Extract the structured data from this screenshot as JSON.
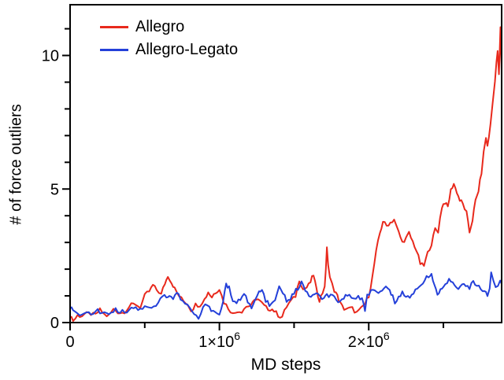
{
  "figure": {
    "background": "#ffffff",
    "axis_color": "#000000"
  },
  "chart_data": {
    "type": "line",
    "title": "",
    "xlabel": "MD steps",
    "ylabel": "# of force outliers",
    "xlim": [
      0,
      2890000
    ],
    "ylim": [
      0,
      11.9
    ],
    "grid": false,
    "legend_position": "top-left",
    "x_major_ticks": [
      {
        "value": 0,
        "base": "0",
        "exp": ""
      },
      {
        "value": 1000000,
        "base": "1×10",
        "exp": "6"
      },
      {
        "value": 2000000,
        "base": "2×10",
        "exp": "6"
      }
    ],
    "x_minor_ticks": [
      500000,
      1500000,
      2500000
    ],
    "y_major_ticks": [
      {
        "value": 0,
        "label": "0"
      },
      {
        "value": 5,
        "label": "5"
      },
      {
        "value": 10,
        "label": "10"
      }
    ],
    "y_minor_ticks": [
      1,
      2,
      3,
      4,
      6,
      7,
      8,
      9,
      11
    ],
    "series": [
      {
        "name": "Allegro",
        "color": "#e8291c",
        "points": [
          [
            0,
            0.25
          ],
          [
            20000,
            0.1
          ],
          [
            50000,
            0.3
          ],
          [
            80000,
            0.22
          ],
          [
            110000,
            0.3
          ],
          [
            140000,
            0.38
          ],
          [
            170000,
            0.28
          ],
          [
            200000,
            0.42
          ],
          [
            230000,
            0.32
          ],
          [
            260000,
            0.3
          ],
          [
            290000,
            0.45
          ],
          [
            320000,
            0.38
          ],
          [
            350000,
            0.42
          ],
          [
            380000,
            0.5
          ],
          [
            410000,
            0.6
          ],
          [
            440000,
            0.72
          ],
          [
            470000,
            0.62
          ],
          [
            500000,
            0.95
          ],
          [
            530000,
            1.15
          ],
          [
            555000,
            1.45
          ],
          [
            580000,
            1.22
          ],
          [
            610000,
            1.0
          ],
          [
            635000,
            1.5
          ],
          [
            655000,
            1.8
          ],
          [
            680000,
            1.45
          ],
          [
            700000,
            1.25
          ],
          [
            730000,
            1.05
          ],
          [
            760000,
            0.8
          ],
          [
            790000,
            0.62
          ],
          [
            810000,
            0.5
          ],
          [
            840000,
            0.7
          ],
          [
            870000,
            0.62
          ],
          [
            900000,
            0.85
          ],
          [
            925000,
            1.2
          ],
          [
            950000,
            0.95
          ],
          [
            975000,
            1.1
          ],
          [
            1000000,
            1.3
          ],
          [
            1030000,
            0.8
          ],
          [
            1060000,
            0.5
          ],
          [
            1090000,
            0.3
          ],
          [
            1120000,
            0.5
          ],
          [
            1150000,
            0.42
          ],
          [
            1180000,
            0.55
          ],
          [
            1210000,
            0.68
          ],
          [
            1245000,
            0.9
          ],
          [
            1270000,
            0.75
          ],
          [
            1300000,
            0.65
          ],
          [
            1340000,
            0.5
          ],
          [
            1380000,
            0.35
          ],
          [
            1420000,
            0.25
          ],
          [
            1450000,
            0.55
          ],
          [
            1480000,
            0.8
          ],
          [
            1510000,
            1.05
          ],
          [
            1535000,
            1.6
          ],
          [
            1560000,
            1.2
          ],
          [
            1585000,
            1.35
          ],
          [
            1610000,
            1.55
          ],
          [
            1630000,
            1.75
          ],
          [
            1650000,
            1.2
          ],
          [
            1670000,
            0.9
          ],
          [
            1690000,
            1.1
          ],
          [
            1705000,
            1.35
          ],
          [
            1713000,
            1.9
          ],
          [
            1720000,
            2.85
          ],
          [
            1728000,
            2.2
          ],
          [
            1740000,
            1.7
          ],
          [
            1755000,
            1.45
          ],
          [
            1770000,
            1.2
          ],
          [
            1790000,
            0.95
          ],
          [
            1810000,
            0.75
          ],
          [
            1835000,
            0.55
          ],
          [
            1860000,
            0.45
          ],
          [
            1890000,
            0.52
          ],
          [
            1920000,
            0.42
          ],
          [
            1950000,
            0.5
          ],
          [
            1975000,
            0.65
          ],
          [
            2000000,
            1.05
          ],
          [
            2025000,
            1.75
          ],
          [
            2050000,
            2.6
          ],
          [
            2075000,
            3.35
          ],
          [
            2095000,
            3.85
          ],
          [
            2120000,
            3.6
          ],
          [
            2145000,
            3.7
          ],
          [
            2170000,
            3.9
          ],
          [
            2200000,
            3.4
          ],
          [
            2225000,
            2.95
          ],
          [
            2250000,
            3.15
          ],
          [
            2270000,
            3.4
          ],
          [
            2295000,
            3.0
          ],
          [
            2320000,
            2.65
          ],
          [
            2345000,
            2.25
          ],
          [
            2370000,
            2.15
          ],
          [
            2395000,
            2.55
          ],
          [
            2420000,
            2.95
          ],
          [
            2445000,
            3.55
          ],
          [
            2465000,
            3.4
          ],
          [
            2490000,
            4.3
          ],
          [
            2510000,
            4.55
          ],
          [
            2530000,
            4.35
          ],
          [
            2550000,
            4.9
          ],
          [
            2570000,
            5.2
          ],
          [
            2590000,
            4.95
          ],
          [
            2610000,
            4.55
          ],
          [
            2630000,
            4.4
          ],
          [
            2655000,
            4.15
          ],
          [
            2675000,
            3.4
          ],
          [
            2695000,
            3.8
          ],
          [
            2715000,
            4.55
          ],
          [
            2735000,
            5.0
          ],
          [
            2755000,
            5.6
          ],
          [
            2770000,
            6.3
          ],
          [
            2785000,
            6.9
          ],
          [
            2795000,
            6.6
          ],
          [
            2805000,
            7.0
          ],
          [
            2815000,
            7.5
          ],
          [
            2830000,
            8.2
          ],
          [
            2845000,
            9.0
          ],
          [
            2855000,
            9.7
          ],
          [
            2863000,
            10.2
          ],
          [
            2872000,
            9.3
          ],
          [
            2882000,
            11.05
          ],
          [
            2890000,
            9.5
          ]
        ]
      },
      {
        "name": "Allegro-Legato",
        "color": "#2440d9",
        "points": [
          [
            0,
            0.55
          ],
          [
            20000,
            0.45
          ],
          [
            50000,
            0.32
          ],
          [
            80000,
            0.28
          ],
          [
            110000,
            0.4
          ],
          [
            140000,
            0.33
          ],
          [
            170000,
            0.45
          ],
          [
            200000,
            0.35
          ],
          [
            230000,
            0.42
          ],
          [
            260000,
            0.36
          ],
          [
            290000,
            0.44
          ],
          [
            320000,
            0.4
          ],
          [
            350000,
            0.48
          ],
          [
            380000,
            0.44
          ],
          [
            410000,
            0.52
          ],
          [
            440000,
            0.58
          ],
          [
            470000,
            0.52
          ],
          [
            500000,
            0.62
          ],
          [
            530000,
            0.55
          ],
          [
            560000,
            0.62
          ],
          [
            590000,
            0.78
          ],
          [
            620000,
            0.9
          ],
          [
            645000,
            1.02
          ],
          [
            665000,
            1.05
          ],
          [
            690000,
            0.88
          ],
          [
            715000,
            1.08
          ],
          [
            740000,
            0.95
          ],
          [
            770000,
            0.7
          ],
          [
            800000,
            0.5
          ],
          [
            830000,
            0.32
          ],
          [
            860000,
            0.2
          ],
          [
            890000,
            0.48
          ],
          [
            920000,
            0.68
          ],
          [
            945000,
            0.55
          ],
          [
            970000,
            0.42
          ],
          [
            1000000,
            0.2
          ],
          [
            1025000,
            0.85
          ],
          [
            1045000,
            1.5
          ],
          [
            1065000,
            1.25
          ],
          [
            1090000,
            0.7
          ],
          [
            1115000,
            0.8
          ],
          [
            1140000,
            0.9
          ],
          [
            1165000,
            1.1
          ],
          [
            1190000,
            0.8
          ],
          [
            1215000,
            0.55
          ],
          [
            1240000,
            0.8
          ],
          [
            1265000,
            1.1
          ],
          [
            1285000,
            1.25
          ],
          [
            1310000,
            0.85
          ],
          [
            1335000,
            0.55
          ],
          [
            1360000,
            0.75
          ],
          [
            1385000,
            1.1
          ],
          [
            1400000,
            1.3
          ],
          [
            1425000,
            1.05
          ],
          [
            1450000,
            0.85
          ],
          [
            1475000,
            0.95
          ],
          [
            1500000,
            1.05
          ],
          [
            1525000,
            1.25
          ],
          [
            1550000,
            1.55
          ],
          [
            1575000,
            1.2
          ],
          [
            1600000,
            0.92
          ],
          [
            1625000,
            1.05
          ],
          [
            1650000,
            1.1
          ],
          [
            1675000,
            0.9
          ],
          [
            1700000,
            0.85
          ],
          [
            1720000,
            1.1
          ],
          [
            1745000,
            1.0
          ],
          [
            1770000,
            0.85
          ],
          [
            1795000,
            0.72
          ],
          [
            1820000,
            0.9
          ],
          [
            1845000,
            1.0
          ],
          [
            1870000,
            0.95
          ],
          [
            1900000,
            1.02
          ],
          [
            1930000,
            1.0
          ],
          [
            1955000,
            0.8
          ],
          [
            1975000,
            0.5
          ],
          [
            1990000,
            1.05
          ],
          [
            2015000,
            1.2
          ],
          [
            2040000,
            1.22
          ],
          [
            2065000,
            1.15
          ],
          [
            2090000,
            1.2
          ],
          [
            2115000,
            1.28
          ],
          [
            2140000,
            1.22
          ],
          [
            2160000,
            1.0
          ],
          [
            2175000,
            0.7
          ],
          [
            2200000,
            0.9
          ],
          [
            2225000,
            1.1
          ],
          [
            2250000,
            1.05
          ],
          [
            2275000,
            1.0
          ],
          [
            2300000,
            1.05
          ],
          [
            2325000,
            1.25
          ],
          [
            2350000,
            1.45
          ],
          [
            2375000,
            1.6
          ],
          [
            2400000,
            1.75
          ],
          [
            2420000,
            1.8
          ],
          [
            2440000,
            1.4
          ],
          [
            2460000,
            1.0
          ],
          [
            2480000,
            1.2
          ],
          [
            2500000,
            1.3
          ],
          [
            2525000,
            1.45
          ],
          [
            2550000,
            1.58
          ],
          [
            2575000,
            1.45
          ],
          [
            2600000,
            1.32
          ],
          [
            2625000,
            1.42
          ],
          [
            2650000,
            1.38
          ],
          [
            2675000,
            1.35
          ],
          [
            2700000,
            1.45
          ],
          [
            2725000,
            1.4
          ],
          [
            2750000,
            1.32
          ],
          [
            2775000,
            1.2
          ],
          [
            2795000,
            0.95
          ],
          [
            2810000,
            1.3
          ],
          [
            2820000,
            1.85
          ],
          [
            2835000,
            1.55
          ],
          [
            2850000,
            1.4
          ],
          [
            2865000,
            1.42
          ],
          [
            2880000,
            1.45
          ],
          [
            2890000,
            1.4
          ]
        ]
      }
    ]
  }
}
